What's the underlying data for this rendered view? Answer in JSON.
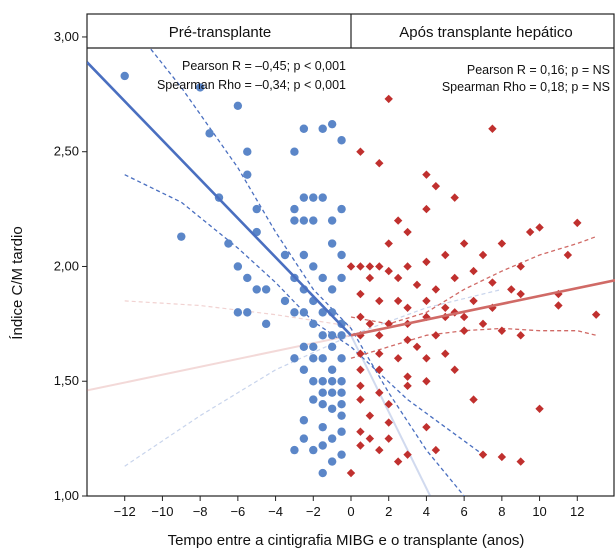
{
  "chart_data": {
    "type": "scatter",
    "xlabel": "Tempo entre a cintigrafia MIBG e o transplante (anos)",
    "ylabel": "Índice C/M tardio",
    "xlim": [
      -14,
      14
    ],
    "ylim": [
      1.0,
      3.1
    ],
    "xticks": [
      -12,
      -10,
      -8,
      -6,
      -4,
      -2,
      0,
      2,
      4,
      6,
      8,
      10,
      12
    ],
    "xtick_labels": [
      "−12",
      "−10",
      "−8",
      "−6",
      "−4",
      "−2",
      "0",
      "2",
      "4",
      "6",
      "8",
      "10",
      "12"
    ],
    "yticks": [
      1.0,
      1.5,
      2.0,
      2.5,
      3.0
    ],
    "ytick_labels": [
      "1,00",
      "1,50",
      "2,00",
      "2,50",
      "3,00"
    ],
    "grid": false,
    "panels": [
      {
        "header": "Pré-transplante",
        "stat_line1": "Pearson R = –0,45; p < 0,001",
        "stat_line2": "Spearman Rho = –0,34; p < 0,001",
        "color": "#5b86c8",
        "line_color": "#4a6fc0",
        "marker": "circle",
        "fit": {
          "x_start": -14,
          "y_start": 2.89,
          "x_end": 0,
          "y_end": 1.7
        },
        "faded_ext": {
          "x_start": 0,
          "y_start": 1.7,
          "x_end": 4.2,
          "y_end": 1.0
        },
        "ci_upper": [
          [
            -12,
            3.09
          ],
          [
            -9,
            2.78
          ],
          [
            -6,
            2.43
          ],
          [
            -4,
            2.15
          ],
          [
            -2,
            1.9
          ],
          [
            0,
            1.73
          ],
          [
            2,
            1.45
          ],
          [
            4,
            1.2
          ],
          [
            6,
            1.0
          ]
        ],
        "ci_lower": [
          [
            -12,
            2.4
          ],
          [
            -9,
            2.28
          ],
          [
            -6,
            2.08
          ],
          [
            -4,
            1.93
          ],
          [
            -2,
            1.76
          ],
          [
            0,
            1.65
          ],
          [
            3,
            1.42
          ],
          [
            7,
            1.18
          ]
        ],
        "faded_ci": [
          [
            -12,
            1.13
          ],
          [
            -8,
            1.35
          ],
          [
            -4,
            1.55
          ],
          [
            0,
            1.7
          ],
          [
            4,
            1.82
          ],
          [
            8,
            1.9
          ]
        ],
        "points": [
          [
            -12,
            2.83
          ],
          [
            -8,
            2.78
          ],
          [
            -7.5,
            2.58
          ],
          [
            -6,
            2.7
          ],
          [
            -5.5,
            2.5
          ],
          [
            -5.5,
            2.4
          ],
          [
            -3,
            2.5
          ],
          [
            -2.5,
            2.6
          ],
          [
            -1.5,
            2.6
          ],
          [
            -1,
            2.62
          ],
          [
            -0.5,
            2.55
          ],
          [
            -7,
            2.3
          ],
          [
            -6.5,
            2.1
          ],
          [
            -9,
            2.13
          ],
          [
            -5,
            2.25
          ],
          [
            -5,
            2.15
          ],
          [
            -3,
            2.25
          ],
          [
            -2.5,
            2.3
          ],
          [
            -2,
            2.3
          ],
          [
            -1.5,
            2.3
          ],
          [
            -1,
            2.2
          ],
          [
            -2,
            2.2
          ],
          [
            -2.5,
            2.2
          ],
          [
            -3,
            2.2
          ],
          [
            -0.5,
            2.25
          ],
          [
            -1,
            2.1
          ],
          [
            -0.5,
            2.05
          ],
          [
            -0.5,
            1.95
          ],
          [
            -6,
            2.0
          ],
          [
            -5.5,
            1.95
          ],
          [
            -5,
            1.9
          ],
          [
            -4.5,
            1.9
          ],
          [
            -3,
            1.95
          ],
          [
            -3.5,
            2.05
          ],
          [
            -2.5,
            2.05
          ],
          [
            -2,
            2.0
          ],
          [
            -1.5,
            1.95
          ],
          [
            -1,
            1.9
          ],
          [
            -2.5,
            1.9
          ],
          [
            -3.5,
            1.85
          ],
          [
            -6,
            1.8
          ],
          [
            -5.5,
            1.8
          ],
          [
            -4.5,
            1.75
          ],
          [
            -3,
            1.8
          ],
          [
            -2.5,
            1.8
          ],
          [
            -2,
            1.75
          ],
          [
            -1.5,
            1.8
          ],
          [
            -1,
            1.8
          ],
          [
            -0.5,
            1.75
          ],
          [
            -1.5,
            1.7
          ],
          [
            -2,
            1.65
          ],
          [
            -2.5,
            1.65
          ],
          [
            -1,
            1.65
          ],
          [
            -3,
            1.6
          ],
          [
            -2,
            1.6
          ],
          [
            -1.5,
            1.6
          ],
          [
            -0.5,
            1.6
          ],
          [
            -1,
            1.55
          ],
          [
            -2.5,
            1.55
          ],
          [
            -2,
            1.5
          ],
          [
            -1.5,
            1.5
          ],
          [
            -1,
            1.45
          ],
          [
            -0.5,
            1.45
          ],
          [
            -1.5,
            1.4
          ],
          [
            -2,
            1.42
          ],
          [
            -1,
            1.38
          ],
          [
            -0.5,
            1.35
          ],
          [
            -2.5,
            1.33
          ],
          [
            -1.5,
            1.3
          ],
          [
            -0.5,
            1.28
          ],
          [
            -2.5,
            1.25
          ],
          [
            -1.5,
            1.22
          ],
          [
            -1,
            1.25
          ],
          [
            -3,
            1.2
          ],
          [
            -2,
            1.2
          ],
          [
            -0.5,
            1.18
          ],
          [
            -1,
            1.15
          ],
          [
            -1.5,
            1.1
          ],
          [
            -0.5,
            1.4
          ],
          [
            -1.5,
            1.45
          ],
          [
            -1,
            1.5
          ],
          [
            -0.5,
            1.5
          ],
          [
            -1,
            1.7
          ],
          [
            -0.5,
            1.7
          ],
          [
            -2,
            1.85
          ]
        ]
      },
      {
        "header": "Após transplante hepático",
        "stat_line1": "Pearson R = 0,16; p = NS",
        "stat_line2": "Spearman Rho = 0,18; p = NS",
        "color": "#c0302e",
        "line_color": "#d06a66",
        "marker": "diamond",
        "fit": {
          "x_start": 0,
          "y_start": 1.7,
          "x_end": 14,
          "y_end": 1.94
        },
        "faded_ext": {
          "x_start": -14,
          "y_start": 1.46,
          "x_end": 0,
          "y_end": 1.7
        },
        "ci_upper": [
          [
            0,
            1.78
          ],
          [
            2,
            1.75
          ],
          [
            4,
            1.8
          ],
          [
            6,
            1.9
          ],
          [
            8,
            1.98
          ],
          [
            10,
            2.05
          ],
          [
            12,
            2.1
          ],
          [
            13,
            2.13
          ]
        ],
        "ci_lower": [
          [
            0,
            1.6
          ],
          [
            2,
            1.65
          ],
          [
            4,
            1.7
          ],
          [
            6,
            1.72
          ],
          [
            8,
            1.73
          ],
          [
            10,
            1.72
          ],
          [
            12,
            1.72
          ],
          [
            13,
            1.7
          ]
        ],
        "faded_ci": [
          [
            -12,
            1.85
          ],
          [
            -8,
            1.83
          ],
          [
            -4,
            1.79
          ],
          [
            0,
            1.74
          ]
        ],
        "points": [
          [
            2,
            2.73
          ],
          [
            7.5,
            2.6
          ],
          [
            0.5,
            2.5
          ],
          [
            1.5,
            2.45
          ],
          [
            4,
            2.4
          ],
          [
            4.5,
            2.35
          ],
          [
            5.5,
            2.3
          ],
          [
            4,
            2.25
          ],
          [
            2.5,
            2.2
          ],
          [
            3,
            2.15
          ],
          [
            2,
            2.1
          ],
          [
            5,
            2.05
          ],
          [
            0.5,
            2.0
          ],
          [
            1,
            2.0
          ],
          [
            1.5,
            2.0
          ],
          [
            2,
            1.98
          ],
          [
            3,
            2.0
          ],
          [
            4,
            2.02
          ],
          [
            6,
            2.1
          ],
          [
            7,
            2.05
          ],
          [
            8,
            2.1
          ],
          [
            9.5,
            2.15
          ],
          [
            10,
            2.17
          ],
          [
            12,
            2.19
          ],
          [
            11.5,
            2.05
          ],
          [
            0,
            2.0
          ],
          [
            1,
            1.95
          ],
          [
            2.5,
            1.95
          ],
          [
            3.5,
            1.92
          ],
          [
            4.5,
            1.9
          ],
          [
            5.5,
            1.95
          ],
          [
            6.5,
            1.98
          ],
          [
            7.5,
            1.93
          ],
          [
            8.5,
            1.9
          ],
          [
            9,
            2.0
          ],
          [
            0.5,
            1.88
          ],
          [
            1.5,
            1.85
          ],
          [
            2.5,
            1.85
          ],
          [
            3,
            1.82
          ],
          [
            4,
            1.85
          ],
          [
            5,
            1.82
          ],
          [
            5.5,
            1.8
          ],
          [
            6.5,
            1.85
          ],
          [
            7.5,
            1.82
          ],
          [
            9,
            1.88
          ],
          [
            11,
            1.88
          ],
          [
            11,
            1.83
          ],
          [
            13,
            1.79
          ],
          [
            0.5,
            1.78
          ],
          [
            1,
            1.75
          ],
          [
            2,
            1.75
          ],
          [
            3,
            1.75
          ],
          [
            4,
            1.78
          ],
          [
            5,
            1.78
          ],
          [
            6,
            1.78
          ],
          [
            7,
            1.75
          ],
          [
            0.5,
            1.7
          ],
          [
            1.5,
            1.7
          ],
          [
            3,
            1.68
          ],
          [
            3.5,
            1.65
          ],
          [
            4.5,
            1.7
          ],
          [
            6,
            1.72
          ],
          [
            8,
            1.72
          ],
          [
            9,
            1.7
          ],
          [
            0.5,
            1.62
          ],
          [
            1.5,
            1.62
          ],
          [
            2.5,
            1.6
          ],
          [
            4,
            1.6
          ],
          [
            5,
            1.62
          ],
          [
            0.5,
            1.55
          ],
          [
            1.5,
            1.55
          ],
          [
            3,
            1.52
          ],
          [
            4,
            1.5
          ],
          [
            5.5,
            1.55
          ],
          [
            0.5,
            1.48
          ],
          [
            1.5,
            1.45
          ],
          [
            3,
            1.48
          ],
          [
            0.5,
            1.42
          ],
          [
            2,
            1.4
          ],
          [
            1,
            1.35
          ],
          [
            2,
            1.32
          ],
          [
            4,
            1.3
          ],
          [
            6.5,
            1.42
          ],
          [
            10,
            1.38
          ],
          [
            0.5,
            1.28
          ],
          [
            1,
            1.25
          ],
          [
            2,
            1.25
          ],
          [
            0.5,
            1.22
          ],
          [
            1.5,
            1.2
          ],
          [
            3,
            1.18
          ],
          [
            4.5,
            1.2
          ],
          [
            2.5,
            1.15
          ],
          [
            7,
            1.18
          ],
          [
            8,
            1.17
          ],
          [
            9,
            1.15
          ],
          [
            0,
            1.1
          ]
        ]
      }
    ]
  }
}
